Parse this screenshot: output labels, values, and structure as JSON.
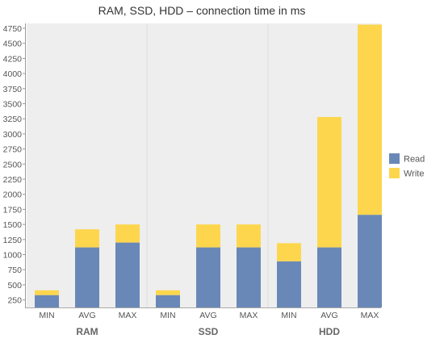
{
  "chart_data": {
    "type": "bar",
    "stacked": true,
    "title": "RAM, SSD, HDD – connection time in ms",
    "groups": [
      {
        "name": "RAM",
        "categories": [
          "MIN",
          "AVG",
          "MAX"
        ]
      },
      {
        "name": "SSD",
        "categories": [
          "MIN",
          "AVG",
          "MAX"
        ]
      },
      {
        "name": "HDD",
        "categories": [
          "MIN",
          "AVG",
          "MAX"
        ]
      }
    ],
    "series": [
      {
        "name": "Read",
        "color": "#6a88b7",
        "values": [
          330,
          1120,
          1200,
          330,
          1120,
          1120,
          890,
          1120,
          1660
        ]
      },
      {
        "name": "Write",
        "color": "#fdd64e",
        "values": [
          80,
          300,
          300,
          80,
          380,
          380,
          300,
          2160,
          3150
        ]
      }
    ],
    "ylim": [
      125,
      4830
    ],
    "yticks": [
      250,
      500,
      750,
      1000,
      1250,
      1500,
      1750,
      2000,
      2250,
      2500,
      2750,
      3000,
      3250,
      3500,
      3750,
      4000,
      4250,
      4500,
      4750
    ],
    "grid": false,
    "legend": "right"
  }
}
